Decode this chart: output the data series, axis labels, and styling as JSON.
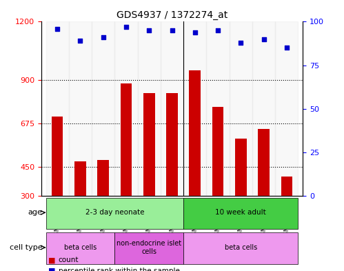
{
  "title": "GDS4937 / 1372274_at",
  "samples": [
    "GSM1146031",
    "GSM1146032",
    "GSM1146033",
    "GSM1146034",
    "GSM1146035",
    "GSM1146036",
    "GSM1146026",
    "GSM1146027",
    "GSM1146028",
    "GSM1146029",
    "GSM1146030"
  ],
  "counts": [
    710,
    480,
    485,
    880,
    830,
    830,
    950,
    760,
    595,
    645,
    400
  ],
  "percentiles": [
    96,
    89,
    91,
    97,
    95,
    95,
    94,
    95,
    88,
    90,
    85
  ],
  "ylim_left": [
    300,
    1200
  ],
  "ylim_right": [
    0,
    100
  ],
  "yticks_left": [
    300,
    450,
    675,
    900,
    1200
  ],
  "yticks_right": [
    0,
    25,
    50,
    75,
    100
  ],
  "bar_color": "#cc0000",
  "dot_color": "#0000cc",
  "grid_color": "#000000",
  "age_groups": [
    {
      "label": "2-3 day neonate",
      "start": 0,
      "end": 6,
      "color": "#99ee99"
    },
    {
      "label": "10 week adult",
      "start": 6,
      "end": 11,
      "color": "#44cc44"
    }
  ],
  "cell_type_groups": [
    {
      "label": "beta cells",
      "start": 0,
      "end": 3,
      "color": "#ee99ee"
    },
    {
      "label": "non-endocrine islet\ncells",
      "start": 3,
      "end": 6,
      "color": "#dd66dd"
    },
    {
      "label": "beta cells",
      "start": 6,
      "end": 11,
      "color": "#ee99ee"
    }
  ],
  "legend_count_label": "count",
  "legend_pct_label": "percentile rank within the sample",
  "age_label": "age",
  "cell_type_label": "cell type",
  "background_color": "#ffffff",
  "plot_bg_color": "#ffffff",
  "tick_bg_color": "#dddddd"
}
